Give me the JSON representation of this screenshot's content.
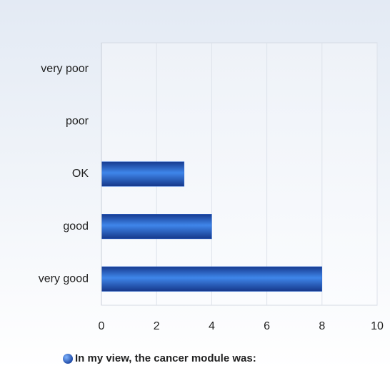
{
  "chart_data": {
    "type": "bar",
    "orientation": "horizontal",
    "categories": [
      "very poor",
      "poor",
      "OK",
      "good",
      "very good"
    ],
    "series": [
      {
        "name": "In my view, the cancer module was:",
        "color": "#2a66d0",
        "values": [
          0,
          0,
          3,
          4,
          8
        ]
      }
    ],
    "xlim": [
      0,
      10
    ],
    "xticks": [
      0,
      2,
      4,
      6,
      8,
      10
    ],
    "grid": true,
    "legend": "bottom"
  }
}
